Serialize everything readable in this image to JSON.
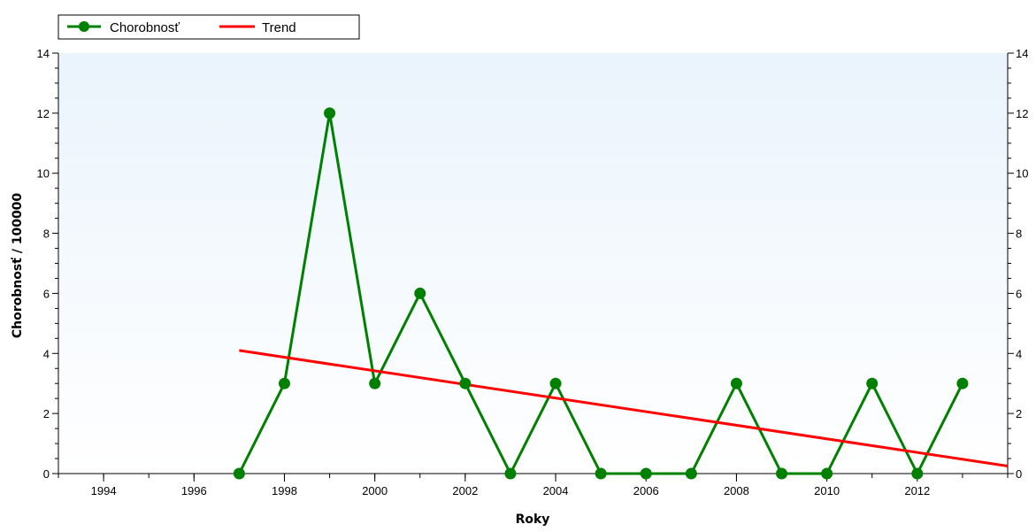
{
  "chart_data": {
    "type": "line",
    "title": "",
    "xlabel": "Roky",
    "ylabel": "Chorobnosť / 100000",
    "xlim": [
      1993,
      2014
    ],
    "ylim": [
      0,
      14
    ],
    "x_ticks": [
      1994,
      1996,
      1998,
      2000,
      2002,
      2004,
      2006,
      2008,
      2010,
      2012
    ],
    "y_ticks": [
      0,
      2,
      4,
      6,
      8,
      10,
      12,
      14
    ],
    "legend_position": "top-left",
    "grid": false,
    "background": "gradient light blue to white",
    "series": [
      {
        "name": "Chorobnosť",
        "color": "#008000",
        "marker": "circle",
        "x": [
          1997,
          1998,
          1999,
          2000,
          2001,
          2002,
          2003,
          2004,
          2005,
          2006,
          2007,
          2008,
          2009,
          2010,
          2011,
          2012,
          2013
        ],
        "y": [
          0,
          3,
          12,
          3,
          6,
          3,
          0,
          3,
          0,
          0,
          0,
          3,
          0,
          0,
          3,
          0,
          3
        ]
      },
      {
        "name": "Trend",
        "color": "#ff0000",
        "marker": "none",
        "x": [
          1997,
          2014
        ],
        "y": [
          4.1,
          0.25
        ]
      }
    ]
  }
}
